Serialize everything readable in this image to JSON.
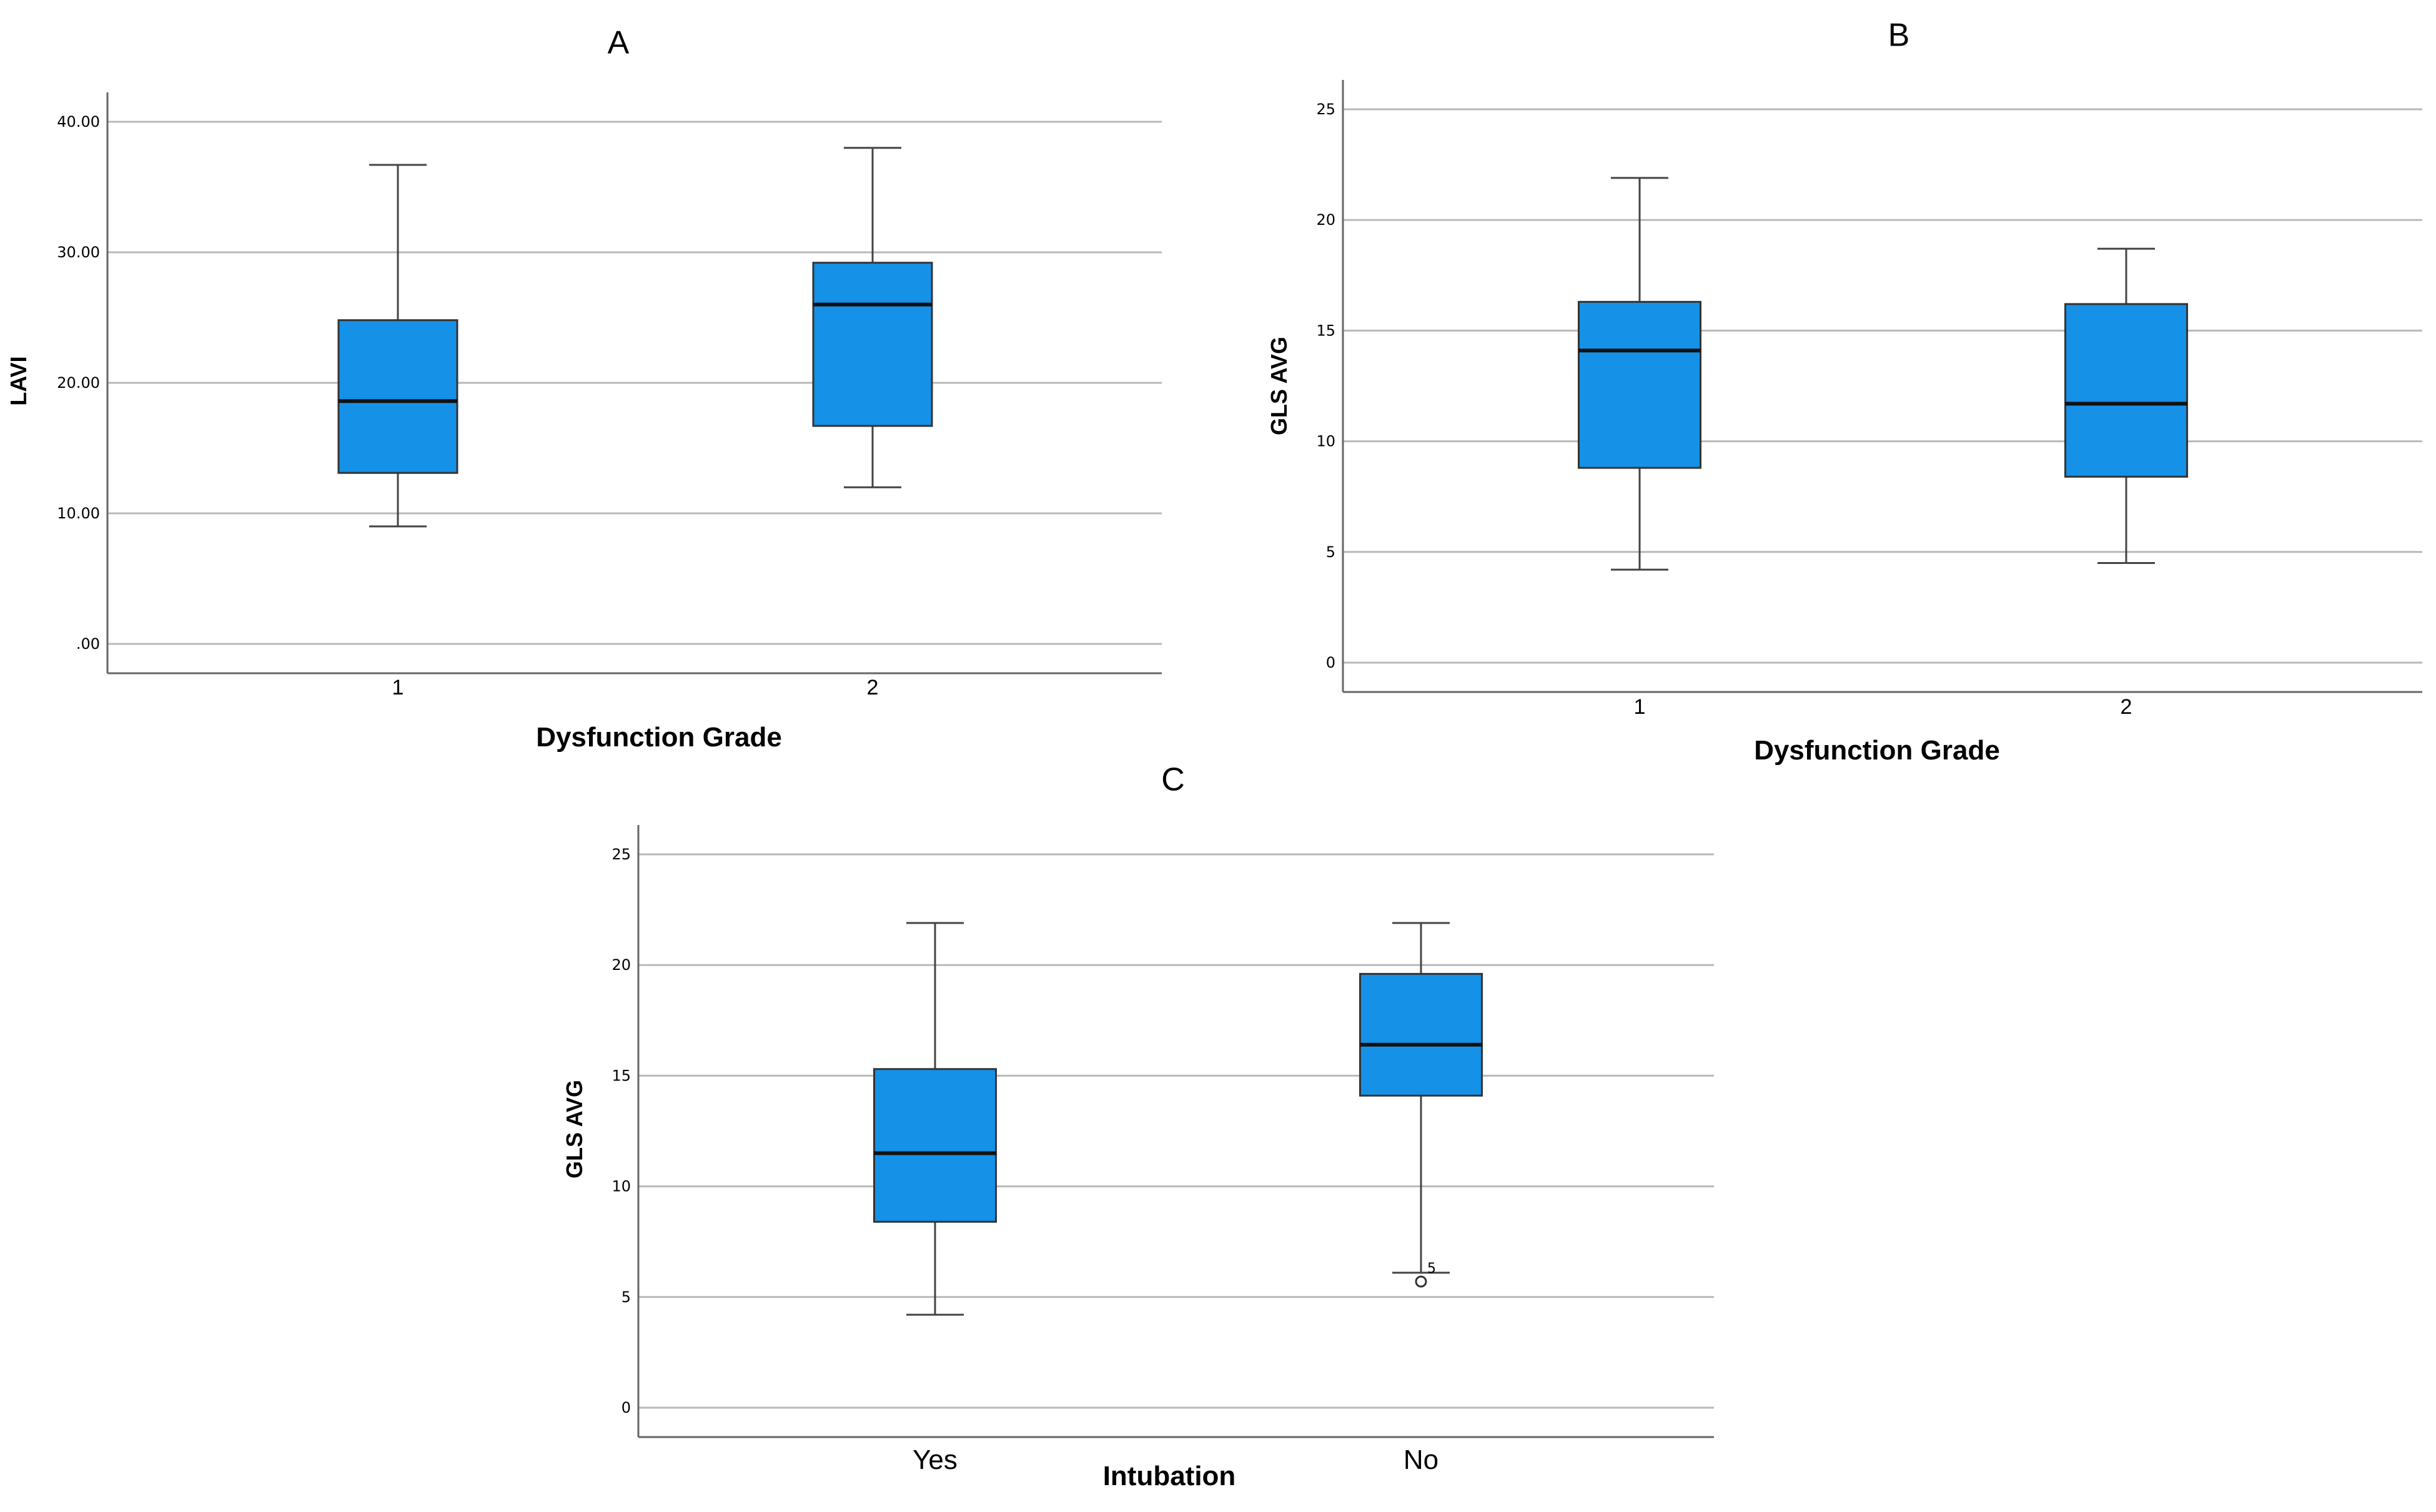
{
  "chart_data": [
    {
      "type": "boxplot",
      "title": "A",
      "xlabel": "Dysfunction Grade",
      "ylabel": "LAVI",
      "ylim": [
        0,
        40
      ],
      "ticks": [
        0,
        10,
        20,
        30,
        40
      ],
      "tick_labels": [
        ".00",
        "10.00",
        "20.00",
        "30.00",
        "40.00"
      ],
      "box_color": "#1591E8",
      "categories": [
        "1",
        "2"
      ],
      "boxes": [
        {
          "min": 9.0,
          "q1": 13.1,
          "median": 18.6,
          "q3": 24.8,
          "max": 36.7
        },
        {
          "min": 12.0,
          "q1": 16.7,
          "median": 26.0,
          "q3": 29.2,
          "max": 38.0
        }
      ]
    },
    {
      "type": "boxplot",
      "title": "B",
      "xlabel": "Dysfunction Grade",
      "ylabel": "GLS AVG",
      "ylim": [
        0,
        25
      ],
      "ticks": [
        0,
        5,
        10,
        15,
        20,
        25
      ],
      "tick_labels": [
        "0",
        "5",
        "10",
        "15",
        "20",
        "25"
      ],
      "box_color": "#1591E8",
      "categories": [
        "1",
        "2"
      ],
      "boxes": [
        {
          "min": 4.2,
          "q1": 8.8,
          "median": 14.1,
          "q3": 16.3,
          "max": 21.9
        },
        {
          "min": 4.5,
          "q1": 8.4,
          "median": 11.7,
          "q3": 16.2,
          "max": 18.7
        }
      ]
    },
    {
      "type": "boxplot",
      "title": "C",
      "xlabel": "Intubation",
      "ylabel": "GLS AVG",
      "ylim": [
        0,
        25
      ],
      "ticks": [
        0,
        5,
        10,
        15,
        20,
        25
      ],
      "tick_labels": [
        "0",
        "5",
        "10",
        "15",
        "20",
        "25"
      ],
      "box_color": "#1591E8",
      "categories": [
        "Yes",
        "No"
      ],
      "boxes": [
        {
          "min": 4.2,
          "q1": 8.4,
          "median": 11.5,
          "q3": 15.3,
          "max": 21.9
        },
        {
          "min": 6.1,
          "q1": 14.1,
          "median": 16.4,
          "q3": 19.6,
          "max": 21.9
        }
      ],
      "outliers": [
        {
          "category": "No",
          "value": 5.7,
          "label": "5"
        }
      ]
    }
  ]
}
